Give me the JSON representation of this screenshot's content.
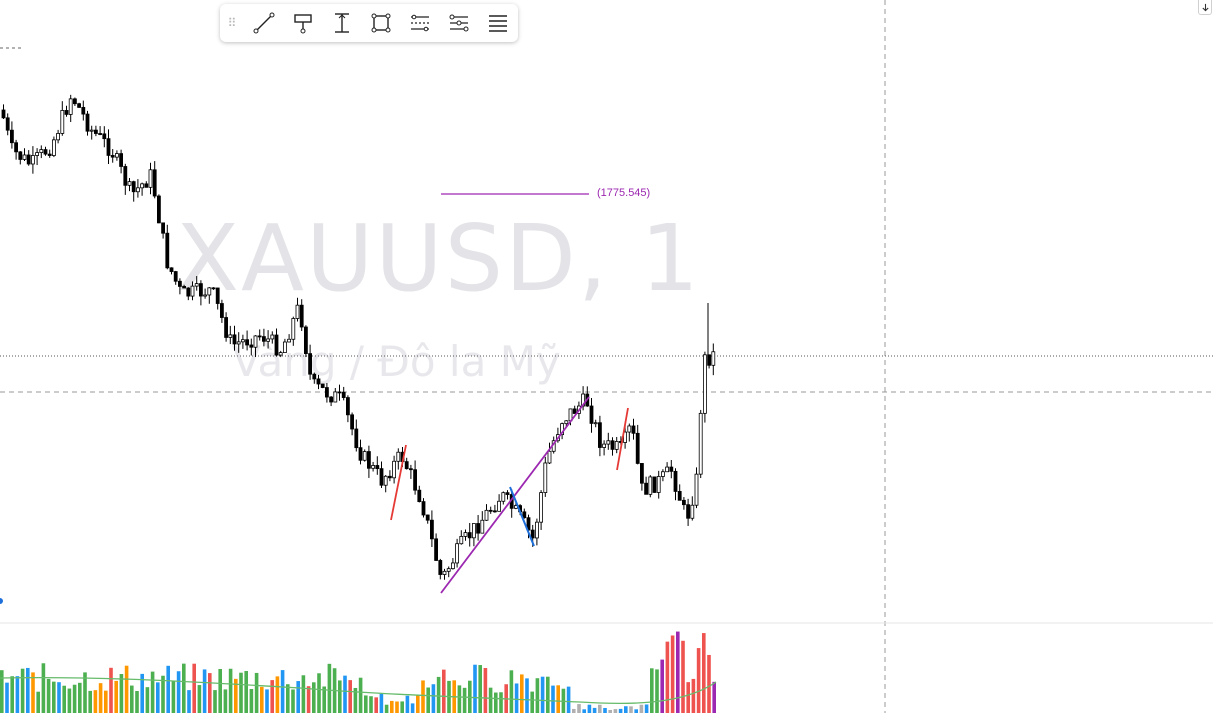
{
  "chart": {
    "symbol": "XAUUSD, 1",
    "description": "Vàng / Đô la Mỹ",
    "horizontal_line_label": "(1775.545)",
    "colors": {
      "up_candle": "#ffffff",
      "down_candle": "#000000",
      "candle_border": "#000000",
      "drawing_purple": "#9c27b0",
      "drawing_red": "#e53935",
      "drawing_blue": "#1e6fd9",
      "volume_green": "#4caf50",
      "volume_orange": "#ff9800",
      "volume_blue": "#2196f3",
      "volume_red": "#ef5350",
      "volume_purple": "#9c27b0",
      "volume_gray": "#b0b0b0",
      "volume_ma": "#66bb6a"
    }
  },
  "toolbar": {
    "tools": [
      {
        "name": "trend-line",
        "icon": "line-icon"
      },
      {
        "name": "callout",
        "icon": "signpost-icon"
      },
      {
        "name": "vertical-range",
        "icon": "vertical-range-icon"
      },
      {
        "name": "rectangle",
        "icon": "rectangle-icon"
      },
      {
        "name": "parallel-channel",
        "icon": "parallel-channel-icon"
      },
      {
        "name": "fib-channel",
        "icon": "fib-channel-icon"
      },
      {
        "name": "horizontal-lines",
        "icon": "horizontal-lines-icon"
      }
    ]
  },
  "scroll": {
    "icon": "arrow-down-icon"
  }
}
